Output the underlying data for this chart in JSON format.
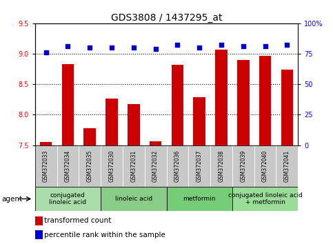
{
  "title": "GDS3808 / 1437295_at",
  "samples": [
    "GSM372033",
    "GSM372034",
    "GSM372035",
    "GSM372030",
    "GSM372031",
    "GSM372032",
    "GSM372036",
    "GSM372037",
    "GSM372038",
    "GSM372039",
    "GSM372040",
    "GSM372041"
  ],
  "bar_values": [
    7.55,
    8.83,
    7.78,
    8.26,
    8.17,
    7.56,
    8.82,
    8.29,
    9.07,
    8.9,
    8.96,
    8.74
  ],
  "dot_values": [
    76,
    81,
    80,
    80,
    80,
    79,
    82,
    80,
    82,
    81,
    81,
    82
  ],
  "ylim_left": [
    7.5,
    9.5
  ],
  "ylim_right": [
    0,
    100
  ],
  "yticks_left": [
    7.5,
    8.0,
    8.5,
    9.0,
    9.5
  ],
  "yticks_right": [
    0,
    25,
    50,
    75,
    100
  ],
  "ytick_labels_right": [
    "0",
    "25",
    "50",
    "75",
    "100%"
  ],
  "bar_color": "#cc0000",
  "dot_color": "#0000cc",
  "bar_bottom": 7.5,
  "gridlines": [
    8.0,
    8.5,
    9.0
  ],
  "groups": [
    {
      "label": "conjugated\nlinoleic acid",
      "start": 0,
      "end": 3,
      "color": "#aaddaa"
    },
    {
      "label": "linoleic acid",
      "start": 3,
      "end": 6,
      "color": "#88cc88"
    },
    {
      "label": "metformin",
      "start": 6,
      "end": 9,
      "color": "#77cc77"
    },
    {
      "label": "conjugated linoleic acid\n+ metformin",
      "start": 9,
      "end": 12,
      "color": "#99dd99"
    }
  ],
  "agent_label": "agent",
  "legend_bar_label": "transformed count",
  "legend_dot_label": "percentile rank within the sample",
  "sample_bg_color": "#c8c8c8",
  "title_fontsize": 10,
  "tick_fontsize": 7,
  "sample_fontsize": 5.5,
  "group_fontsize": 6.5,
  "legend_fontsize": 7.5,
  "agent_fontsize": 7.5
}
